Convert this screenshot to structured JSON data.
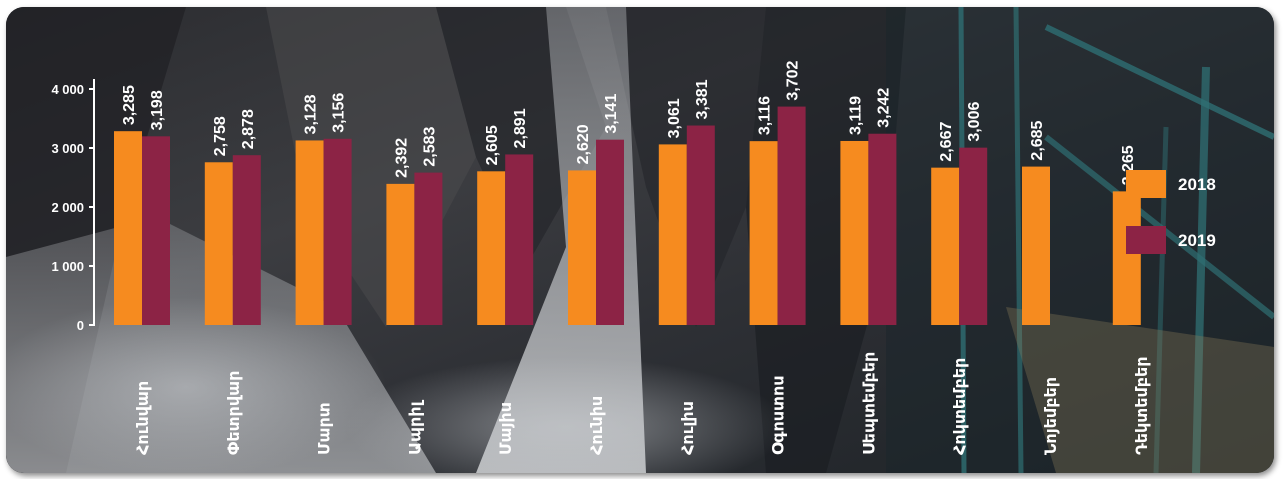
{
  "chart_data": {
    "type": "bar",
    "categories": [
      "Հունվար",
      "Փետրվար",
      "Մարտ",
      "Ապրիլ",
      "Մայիս",
      "Հունիս",
      "Հուլիս",
      "Օգոստոս",
      "Սեպտեմբեր",
      "Հոկտեմբեր",
      "Նոյեմբեր",
      "Դեկտեմբեր"
    ],
    "series": [
      {
        "name": "2018",
        "color": "#f68b1f",
        "values": [
          3285,
          2758,
          3128,
          2392,
          2605,
          2620,
          3061,
          3116,
          3119,
          2667,
          2685,
          2265
        ],
        "labels": [
          "3,285",
          "2,758",
          "3,128",
          "2,392",
          "2,605",
          "2,620",
          "3,061",
          "3,116",
          "3,119",
          "2,667",
          "2,685",
          "2,265"
        ]
      },
      {
        "name": "2019",
        "color": "#8c2345",
        "values": [
          3198,
          2878,
          3156,
          2583,
          2891,
          3141,
          3381,
          3702,
          3242,
          3006,
          null,
          null
        ],
        "labels": [
          "3,198",
          "2,878",
          "3,156",
          "2,583",
          "2,891",
          "3,141",
          "3,381",
          "3,702",
          "3,242",
          "3,006",
          null,
          null
        ]
      }
    ],
    "ylim": [
      0,
      4000
    ],
    "yticks": [
      0,
      1000,
      2000,
      3000,
      4000
    ],
    "ytick_labels": [
      "0",
      "1 000",
      "2 000",
      "3 000",
      "4 000"
    ],
    "legend_position": "right",
    "grid": false
  }
}
